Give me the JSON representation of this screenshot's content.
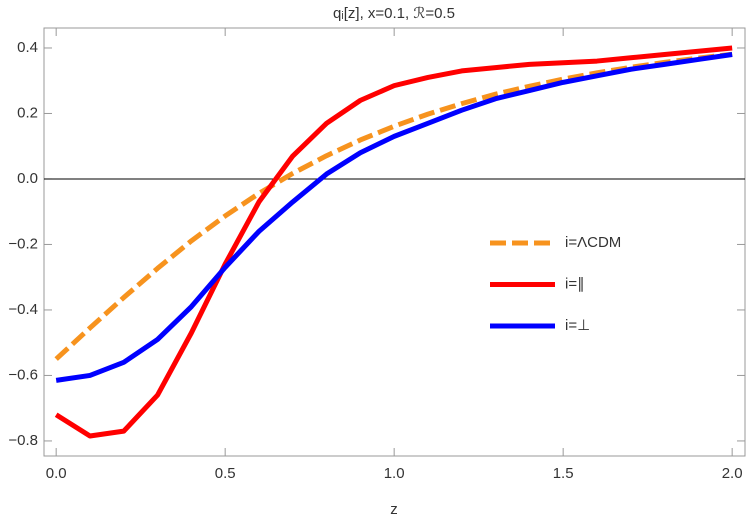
{
  "chart_data": {
    "type": "line",
    "title": "qᵢ[z], x=0.1, ℛ=0.5",
    "x_label": "z",
    "x": [
      0,
      0.1,
      0.2,
      0.3,
      0.4,
      0.5,
      0.6,
      0.7,
      0.8,
      0.9,
      1.0,
      1.1,
      1.2,
      1.3,
      1.4,
      1.5,
      1.6,
      1.7,
      1.8,
      1.9,
      2.0
    ],
    "series": [
      {
        "name": "i=ΛCDM",
        "color": "#f7931e",
        "dashed": true,
        "values": [
          -0.55,
          -0.455,
          -0.362,
          -0.273,
          -0.189,
          -0.113,
          -0.044,
          0.017,
          0.071,
          0.119,
          0.161,
          0.198,
          0.23,
          0.259,
          0.283,
          0.305,
          0.324,
          0.341,
          0.356,
          0.369,
          0.381
        ]
      },
      {
        "name": "i=∥",
        "color": "#ff0000",
        "dashed": false,
        "values": [
          -0.72,
          -0.785,
          -0.77,
          -0.66,
          -0.47,
          -0.26,
          -0.07,
          0.07,
          0.17,
          0.24,
          0.285,
          0.31,
          0.33,
          0.34,
          0.35,
          0.355,
          0.36,
          0.37,
          0.38,
          0.39,
          0.4
        ]
      },
      {
        "name": "i=⊥",
        "color": "#0000ff",
        "dashed": false,
        "values": [
          -0.615,
          -0.6,
          -0.56,
          -0.49,
          -0.39,
          -0.27,
          -0.16,
          -0.07,
          0.015,
          0.08,
          0.13,
          0.17,
          0.21,
          0.245,
          0.27,
          0.295,
          0.315,
          0.335,
          0.35,
          0.365,
          0.38
        ]
      }
    ],
    "xlim": [
      -0.036,
      2.038
    ],
    "ylim": [
      -0.846,
      0.461
    ],
    "xticks": [
      {
        "value": 0,
        "label": "0.0"
      },
      {
        "value": 0.5,
        "label": "0.5"
      },
      {
        "value": 1,
        "label": "1.0"
      },
      {
        "value": 1.5,
        "label": "1.5"
      },
      {
        "value": 2,
        "label": "2.0"
      }
    ],
    "yticks": [
      {
        "value": -0.8,
        "label": "−0.8"
      },
      {
        "value": -0.6,
        "label": "−0.6"
      },
      {
        "value": -0.4,
        "label": "−0.4"
      },
      {
        "value": -0.2,
        "label": "−0.2"
      },
      {
        "value": 0,
        "label": "0.0"
      },
      {
        "value": 0.2,
        "label": "0.2"
      },
      {
        "value": 0.4,
        "label": "0.4"
      }
    ],
    "zero_line": true,
    "legend": "right"
  }
}
